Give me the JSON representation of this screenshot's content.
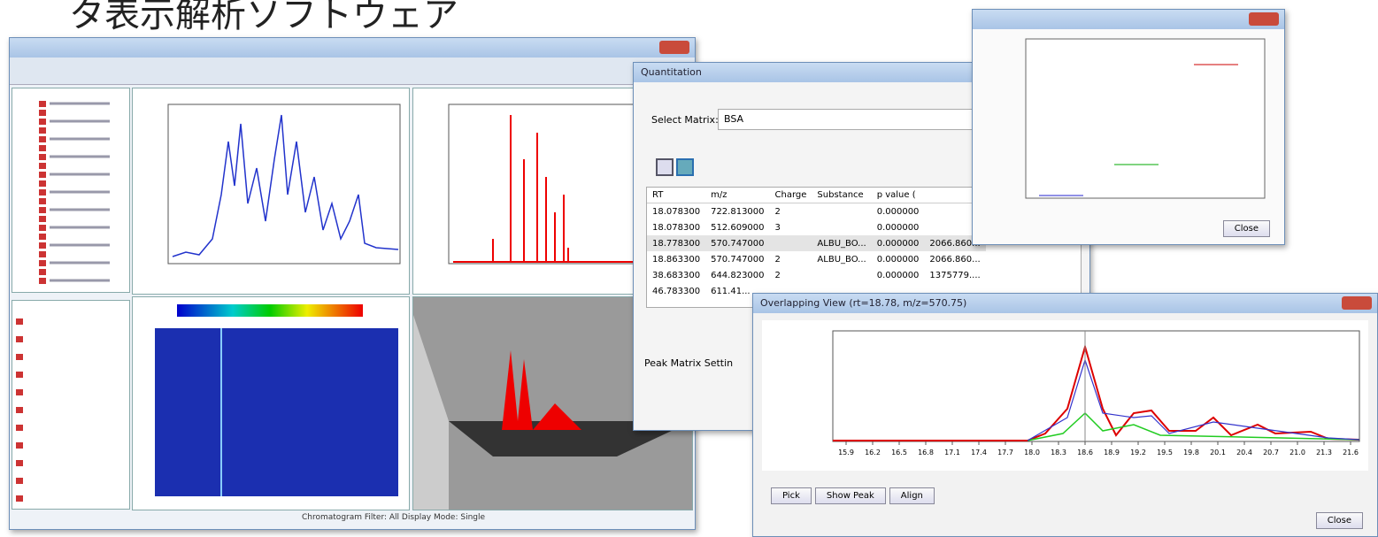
{
  "heading": "タ表示解析ソフトウェア",
  "main_window": {
    "status": "Chromatogram Filter: All   Display Mode: Single"
  },
  "quantitation": {
    "title": "Quantitation",
    "select_label": "Select Matrix:",
    "matrix": "BSA",
    "columns": [
      "RT",
      "m/z",
      "Charge",
      "Substance",
      "p value (",
      ""
    ],
    "rows": [
      [
        "18.078300",
        "722.813000",
        "2",
        null,
        "0.000000",
        null
      ],
      [
        "18.078300",
        "512.609000",
        "3",
        null,
        "0.000000",
        null
      ],
      [
        "18.778300",
        "570.747000",
        null,
        "ALBU_BO...",
        "0.000000",
        "2066.860..."
      ],
      [
        "18.863300",
        "570.747000",
        "2",
        "ALBU_BO...",
        "0.000000",
        "2066.860..."
      ],
      [
        "38.683300",
        "644.823000",
        "2",
        null,
        "0.000000",
        "1375779...."
      ],
      [
        "46.783300",
        "611.41...",
        null,
        null,
        null,
        null
      ]
    ],
    "settings": "Peak Matrix Settin"
  },
  "overlap": {
    "title": "Overlapping View (rt=18.78, m/z=570.75)",
    "xticks": [
      "15.9",
      "16.2",
      "16.5",
      "16.8",
      "17.1",
      "17.4",
      "17.7",
      "18.0",
      "18.3",
      "18.6",
      "18.9",
      "19.2",
      "19.5",
      "19.8",
      "20.1",
      "20.4",
      "20.7",
      "21.0",
      "21.3",
      "21.6"
    ],
    "buttons": [
      "Pick",
      "Show Peak",
      "Align"
    ],
    "close": "Close"
  },
  "average_window": {
    "close": "Close"
  }
}
